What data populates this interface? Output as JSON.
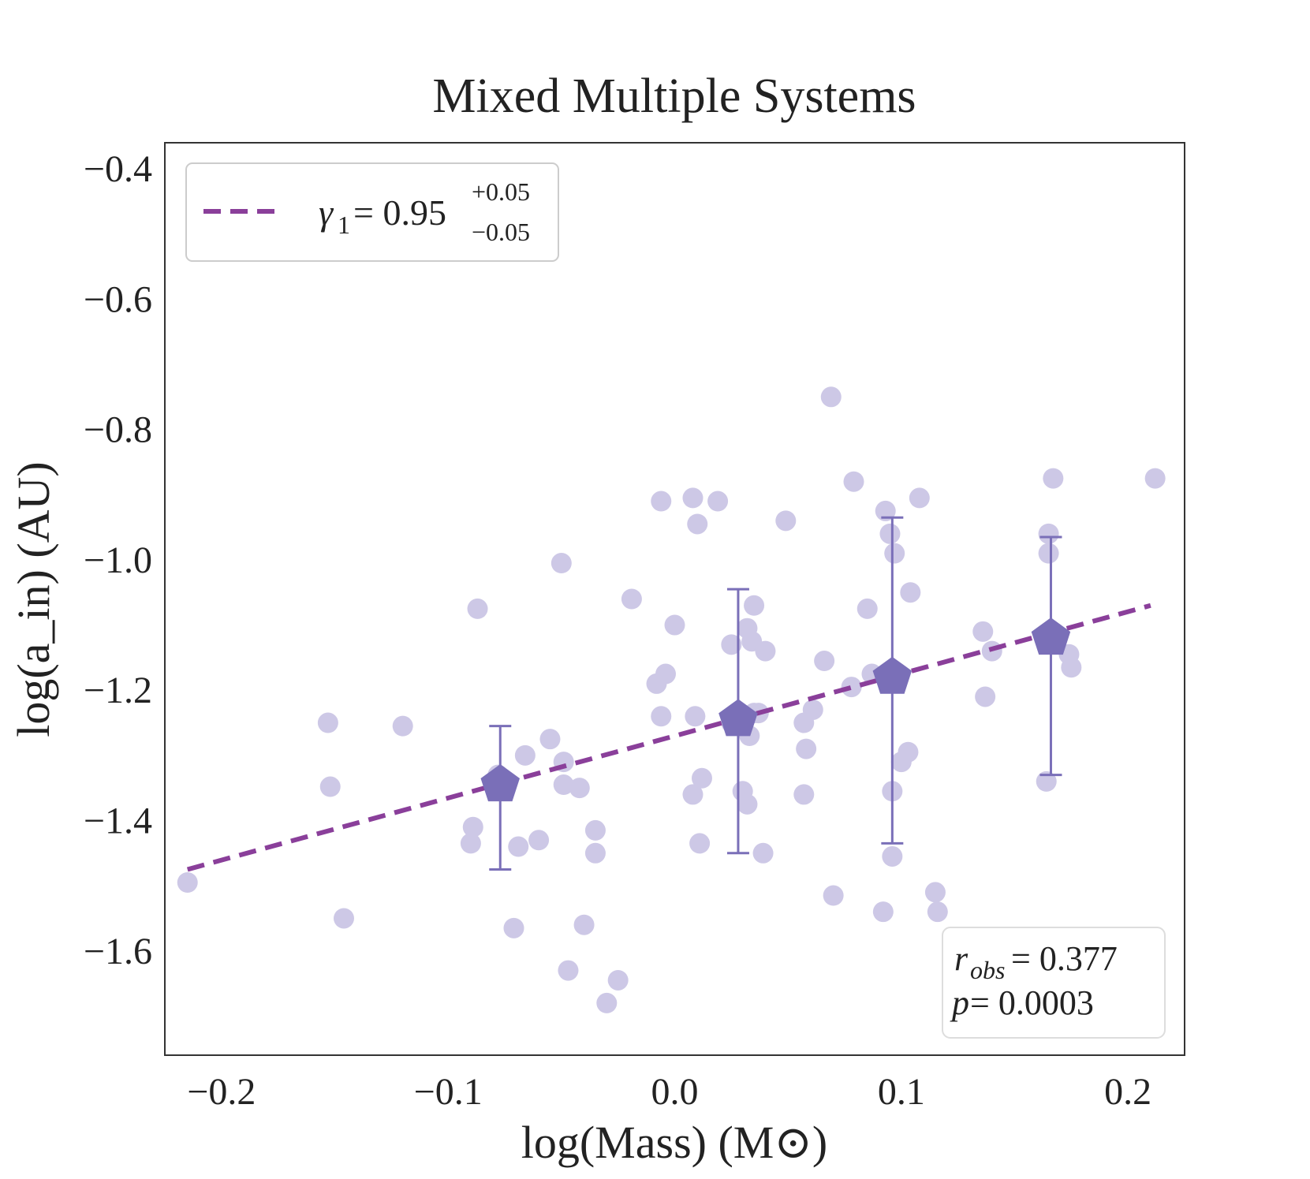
{
  "chart_data": {
    "type": "scatter",
    "title": "Mixed Multiple Systems",
    "xlabel": "log(Mass) (M⊙)",
    "ylabel": "log(a_in) (AU)",
    "xlim": [
      -0.225,
      0.225
    ],
    "ylim": [
      -1.76,
      -0.36
    ],
    "xticks": [
      -0.2,
      -0.1,
      0.0,
      0.1,
      0.2
    ],
    "yticks": [
      -1.6,
      -1.4,
      -1.2,
      -1.0,
      -0.8,
      -0.6,
      -0.4
    ],
    "xtick_labels": [
      "−0.2",
      "−0.1",
      "0.0",
      "0.1",
      "0.2"
    ],
    "ytick_labels": [
      "−1.6",
      "−1.4",
      "−1.2",
      "−1.0",
      "−0.8",
      "−0.6",
      "−0.4"
    ],
    "grid": false,
    "colors": {
      "points": "#cdc8e6",
      "binned": "#7a6fb8",
      "fit": "#8a3f9a",
      "axes": "#333333"
    },
    "series": [
      {
        "kind": "points",
        "x": [
          -0.215,
          -0.153,
          -0.152,
          -0.146,
          -0.12,
          -0.087,
          -0.089,
          -0.09,
          -0.078,
          -0.071,
          -0.069,
          -0.066,
          -0.06,
          -0.055,
          -0.05,
          -0.049,
          -0.049,
          -0.047,
          -0.042,
          -0.04,
          -0.035,
          -0.035,
          -0.03,
          -0.025,
          -0.019,
          -0.008,
          -0.006,
          -0.004,
          -0.006,
          0.0,
          0.008,
          0.008,
          0.009,
          0.01,
          0.011,
          0.012,
          0.019,
          0.025,
          0.025,
          0.03,
          0.032,
          0.032,
          0.033,
          0.034,
          0.035,
          0.035,
          0.037,
          0.039,
          0.04,
          0.049,
          0.057,
          0.057,
          0.058,
          0.061,
          0.066,
          0.069,
          0.07,
          0.078,
          0.079,
          0.085,
          0.087,
          0.092,
          0.093,
          0.095,
          0.096,
          0.096,
          0.097,
          0.1,
          0.103,
          0.104,
          0.108,
          0.115,
          0.116,
          0.136,
          0.137,
          0.14,
          0.164,
          0.165,
          0.165,
          0.167,
          0.174,
          0.175,
          0.212
        ],
        "y": [
          -1.495,
          -1.25,
          -1.348,
          -1.55,
          -1.255,
          -1.075,
          -1.41,
          -1.435,
          -1.33,
          -1.565,
          -1.44,
          -1.3,
          -1.43,
          -1.275,
          -1.005,
          -1.31,
          -1.345,
          -1.63,
          -1.35,
          -1.56,
          -1.415,
          -1.45,
          -1.68,
          -1.645,
          -1.06,
          -1.19,
          -0.91,
          -1.175,
          -1.24,
          -1.1,
          -1.36,
          -0.905,
          -1.24,
          -0.945,
          -1.435,
          -1.335,
          -0.91,
          -1.13,
          -1.25,
          -1.355,
          -1.375,
          -1.105,
          -1.27,
          -1.125,
          -1.235,
          -1.07,
          -1.235,
          -1.45,
          -1.14,
          -0.94,
          -1.36,
          -1.25,
          -1.29,
          -1.23,
          -1.155,
          -0.75,
          -1.515,
          -1.195,
          -0.88,
          -1.075,
          -1.175,
          -1.54,
          -0.925,
          -0.96,
          -1.355,
          -1.455,
          -0.99,
          -1.31,
          -1.295,
          -1.05,
          -0.905,
          -1.51,
          -1.54,
          -1.11,
          -1.21,
          -1.14,
          -1.34,
          -0.96,
          -0.99,
          -0.875,
          -1.145,
          -1.165,
          -0.875
        ]
      },
      {
        "kind": "binned",
        "x": [
          -0.077,
          0.028,
          0.096,
          0.166
        ],
        "y": [
          -1.345,
          -1.245,
          -1.18,
          -1.12
        ],
        "ylow": [
          -1.475,
          -1.45,
          -1.435,
          -1.33
        ],
        "yhigh": [
          -1.255,
          -1.045,
          -0.935,
          -0.965
        ]
      },
      {
        "kind": "fit",
        "x": [
          -0.215,
          0.21
        ],
        "y": [
          -1.475,
          -1.07
        ]
      }
    ],
    "legend": {
      "position": "upper-left",
      "gamma_symbol": "γ",
      "gamma_sub": "1",
      "gamma_eq": " = 0.95",
      "gamma_plus": "+0.05",
      "gamma_minus": "−0.05"
    },
    "stats": {
      "position": "lower-right",
      "r_sym": "r",
      "r_sub": "obs",
      "r_val": " = 0.377",
      "p_sym": "p",
      "p_val": " = 0.0003"
    }
  }
}
